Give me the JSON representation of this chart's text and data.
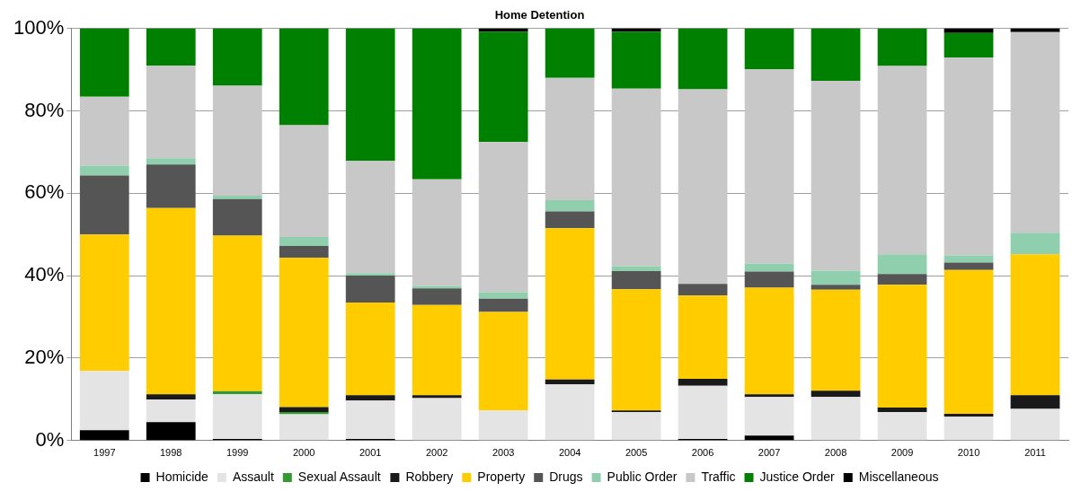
{
  "chart_data": {
    "type": "bar",
    "title": "Home Detention",
    "stacked": true,
    "categories": [
      "1997",
      "1998",
      "1999",
      "2000",
      "2001",
      "2002",
      "2003",
      "2004",
      "2005",
      "2006",
      "2007",
      "2008",
      "2009",
      "2010",
      "2011"
    ],
    "series": [
      {
        "name": "Homicide",
        "color": "#000000",
        "values": [
          2.5,
          4.5,
          0.4,
          0,
          0.4,
          0,
          0,
          0,
          0,
          0.4,
          1.2,
          0,
          0,
          0,
          0
        ]
      },
      {
        "name": "Assault",
        "color": "#e4e4e4",
        "values": [
          14.4,
          5.5,
          10.8,
          6.4,
          9.3,
          10.3,
          7.3,
          13.6,
          6.9,
          12.9,
          9.4,
          10.6,
          6.9,
          5.8,
          7.7
        ]
      },
      {
        "name": "Sexual Assault",
        "color": "#339933",
        "values": [
          0,
          0,
          0.8,
          0.5,
          0,
          0,
          0,
          0,
          0,
          0,
          0,
          0,
          0,
          0,
          0
        ]
      },
      {
        "name": "Robbery",
        "color": "#1a1a1a",
        "values": [
          0,
          1.2,
          0,
          1.2,
          1.3,
          0.7,
          0,
          1.2,
          0.4,
          1.7,
          0.6,
          1.5,
          1.1,
          0.7,
          3.3
        ]
      },
      {
        "name": "Property",
        "color": "#ffcc00",
        "values": [
          33.1,
          45.2,
          37.7,
          36.2,
          22.5,
          21.9,
          23.9,
          36.7,
          29.4,
          20.2,
          25.9,
          24.5,
          29.8,
          34.9,
          34.2
        ]
      },
      {
        "name": "Drugs",
        "color": "#555555",
        "values": [
          14.3,
          10.6,
          8.9,
          2.9,
          6.5,
          4.0,
          3.2,
          4.1,
          4.4,
          2.8,
          3.9,
          1.2,
          2.6,
          1.8,
          0
        ]
      },
      {
        "name": "Public Order",
        "color": "#8fcfae",
        "values": [
          2.4,
          1.5,
          0.8,
          2.2,
          0.6,
          0.6,
          1.6,
          2.7,
          1.2,
          0,
          1.9,
          3.4,
          4.8,
          1.7,
          5.2
        ]
      },
      {
        "name": "Traffic",
        "color": "#c8c8c8",
        "values": [
          16.7,
          22.5,
          26.7,
          27.1,
          27.3,
          25.9,
          36.4,
          29.7,
          43.1,
          47.2,
          47.2,
          46.1,
          45.7,
          48.0,
          48.7
        ]
      },
      {
        "name": "Justice Order",
        "color": "#008000",
        "values": [
          16.6,
          9.0,
          13.9,
          23.5,
          32.1,
          36.6,
          26.8,
          12.0,
          13.8,
          14.8,
          9.9,
          12.7,
          9.1,
          6.0,
          0
        ]
      },
      {
        "name": "Miscellaneous",
        "color": "#000000",
        "values": [
          0,
          0,
          0,
          0,
          0,
          0,
          0.8,
          0,
          0.8,
          0,
          0,
          0,
          0,
          1.1,
          0.9
        ]
      }
    ],
    "ylim": [
      0,
      100
    ],
    "yticks": [
      {
        "value": 0,
        "label": "0%"
      },
      {
        "value": 20,
        "label": "20%"
      },
      {
        "value": 40,
        "label": "40%"
      },
      {
        "value": 60,
        "label": "60%"
      },
      {
        "value": 80,
        "label": "80%"
      },
      {
        "value": 100,
        "label": "100%"
      }
    ],
    "grid": "y",
    "legend": "bottom"
  }
}
